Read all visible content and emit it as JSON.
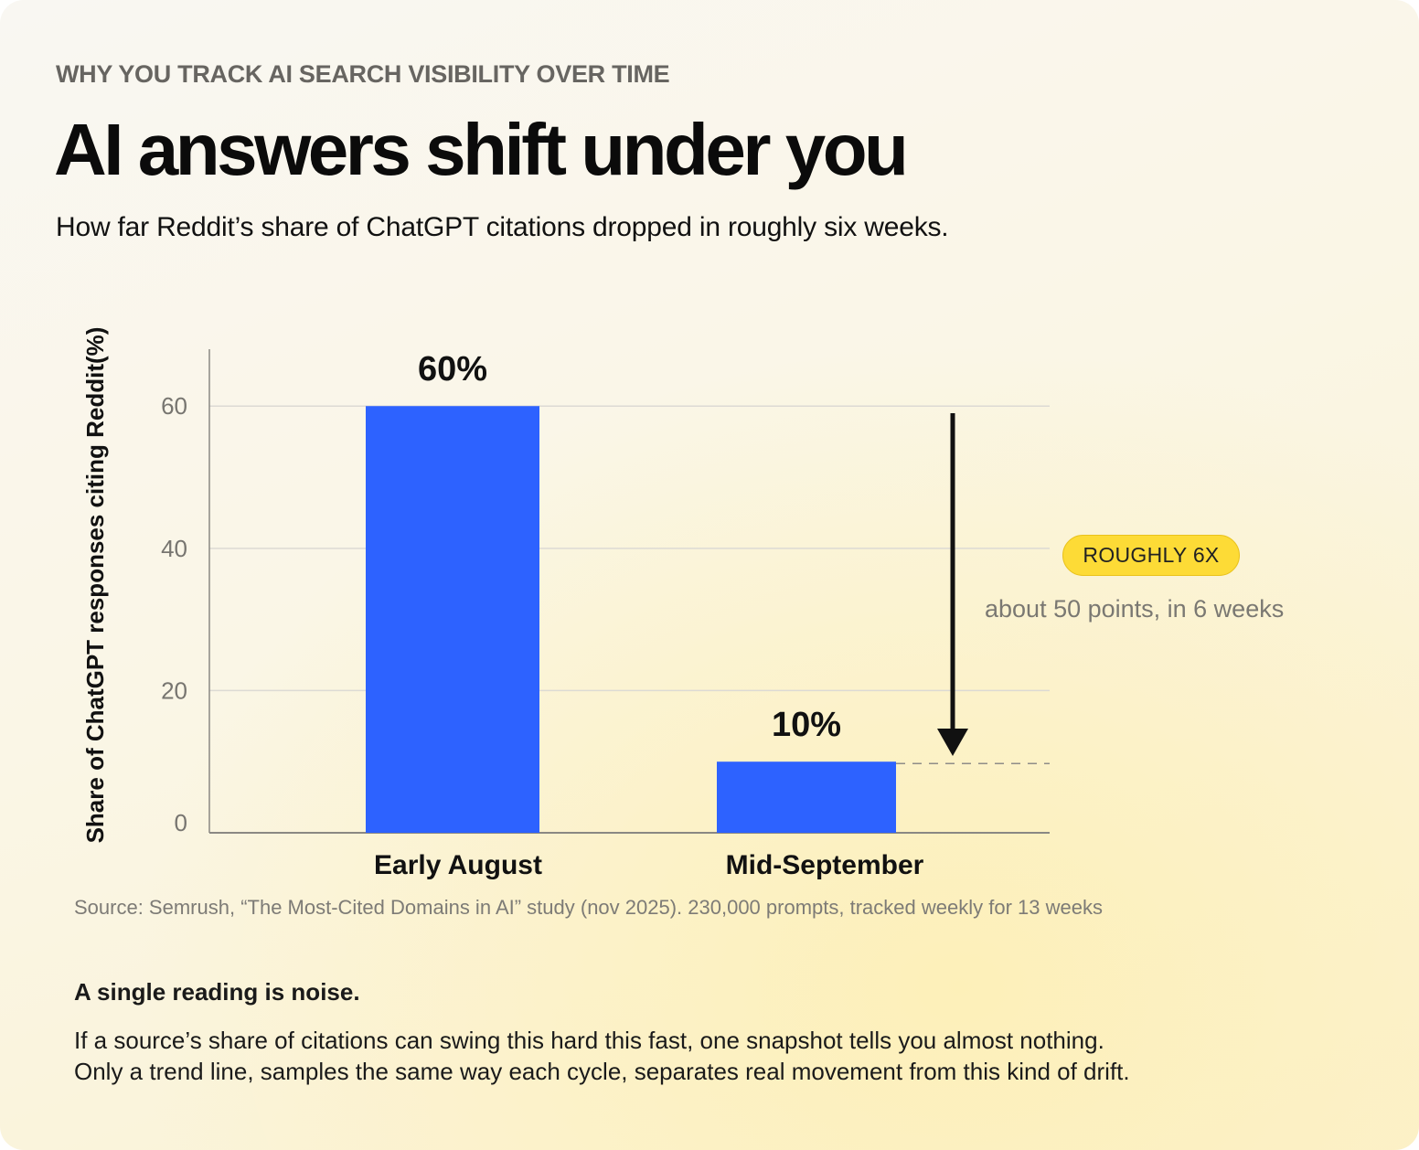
{
  "header": {
    "eyebrow": "WHY YOU TRACK AI SEARCH VISIBILITY OVER TIME",
    "title": "AI answers shift under you",
    "subtitle": "How far Reddit’s share of ChatGPT citations dropped in roughly six weeks."
  },
  "chart_data": {
    "type": "bar",
    "categories": [
      "Early August",
      "Mid-September"
    ],
    "values": [
      60,
      10
    ],
    "data_labels": [
      "60%",
      "10%"
    ],
    "ylabel": "Share of ChatGPT responses citing Reddit(%)",
    "xlabel": "",
    "ylim": [
      0,
      68
    ],
    "yticks": [
      0,
      20,
      40,
      60
    ],
    "grid": true,
    "colors": {
      "bar": "#2d62ff",
      "grid": "#dcdad4",
      "axis": "#8a8883"
    },
    "annotation": {
      "type": "drop-arrow",
      "from": 60,
      "to": 10,
      "badge": "ROUGHLY 6X",
      "note": "about 50 points, in 6 weeks",
      "badge_color": "#fddb36"
    }
  },
  "source": "Source: Semrush, “The Most-Cited Domains in AI” study (nov 2025). 230,000 prompts, tracked weekly for 13 weeks",
  "takeaway": {
    "title": "A single reading is noise.",
    "lines": [
      "If a source’s share of citations can swing this hard this fast, one snapshot tells you almost nothing.",
      "Only a trend line, samples the same way each cycle, separates real movement from this kind of drift."
    ]
  }
}
